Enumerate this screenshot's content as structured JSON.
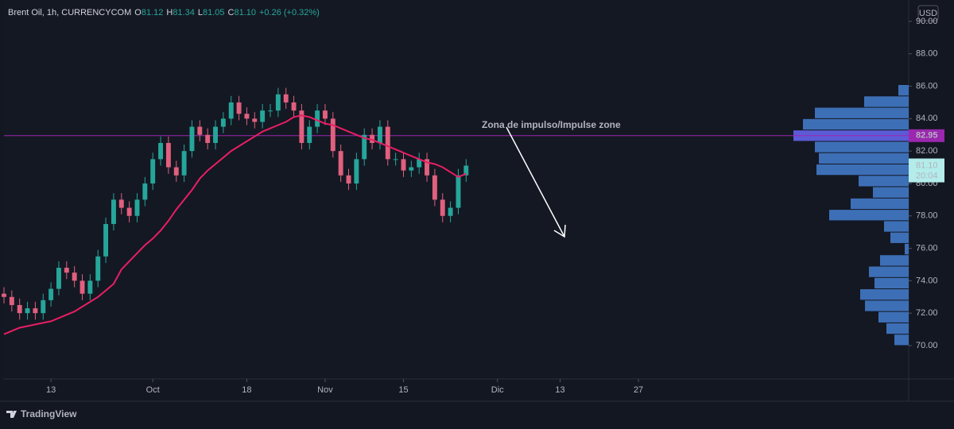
{
  "chart_data": {
    "type": "candlestick",
    "title": "Brent Oil, 1h, CURRENCYCOM",
    "ohlc": [
      {
        "key": "O",
        "text": "81.12"
      },
      {
        "key": "H",
        "text": "81.34"
      },
      {
        "key": "L",
        "text": "81.05"
      },
      {
        "key": "C",
        "text": "81.10"
      }
    ],
    "change": "+0.26 (+0.32%)",
    "currency": "USD",
    "brand": "TradingView",
    "annotation": "Zona de impulso/Impulse zone",
    "up_color": "#26a69a",
    "down_color": "#e0607e",
    "xlim": [
      -6,
      109.5
    ],
    "ylim": [
      67.94,
      91.32
    ],
    "grid": false,
    "xticks": [
      {
        "value": 0,
        "label": "13"
      },
      {
        "value": 13,
        "label": "Oct"
      },
      {
        "value": 25,
        "label": "18"
      },
      {
        "value": 35,
        "label": "Nov"
      },
      {
        "value": 45,
        "label": "15"
      },
      {
        "value": 57,
        "label": "Dic"
      },
      {
        "value": 65,
        "label": "13"
      },
      {
        "value": 75,
        "label": "27"
      }
    ],
    "yticks": [
      {
        "value": 70,
        "label": "70.00"
      },
      {
        "value": 72,
        "label": "72.00"
      },
      {
        "value": 74,
        "label": "74.00"
      },
      {
        "value": 76,
        "label": "76.00"
      },
      {
        "value": 78,
        "label": "78.00"
      },
      {
        "value": 80,
        "label": "80.00"
      },
      {
        "value": 82,
        "label": "82.00"
      },
      {
        "value": 84,
        "label": "84.00"
      },
      {
        "value": 86,
        "label": "86.00"
      },
      {
        "value": 88,
        "label": "88.00"
      },
      {
        "value": 90,
        "label": "90.00"
      }
    ],
    "candles": {
      "x": [
        -6,
        -5,
        -4,
        -3,
        -2,
        -1,
        0,
        1,
        2,
        3,
        4,
        5,
        6,
        7,
        8,
        9,
        10,
        11,
        12,
        13,
        14,
        15,
        16,
        17,
        18,
        19,
        20,
        21,
        22,
        23,
        24,
        25,
        26,
        27,
        28,
        29,
        30,
        31,
        32,
        33,
        34,
        35,
        36,
        37,
        38,
        39,
        40,
        41,
        42,
        43,
        44,
        45,
        46,
        47,
        48,
        49,
        50,
        51,
        52,
        53
      ],
      "open": [
        73.2,
        73.0,
        72.5,
        72.0,
        72.3,
        72.0,
        72.8,
        73.5,
        74.8,
        74.5,
        74.0,
        73.2,
        74.0,
        75.5,
        77.5,
        79.0,
        78.5,
        78.0,
        79.0,
        80.0,
        81.5,
        82.5,
        81.0,
        80.5,
        82.0,
        83.5,
        83.0,
        82.5,
        83.5,
        84.0,
        85.0,
        84.3,
        84.0,
        83.8,
        84.5,
        84.5,
        85.5,
        85.0,
        84.5,
        82.5,
        83.5,
        84.5,
        84.0,
        82.0,
        80.5,
        80.0,
        81.5,
        83.0,
        82.5,
        83.5,
        81.5,
        81.5,
        80.8,
        81.0,
        81.5,
        80.5,
        79.0,
        78.0,
        78.5,
        80.5
      ],
      "high": [
        73.6,
        73.4,
        72.9,
        72.7,
        72.7,
        73.2,
        73.9,
        75.2,
        75.2,
        74.9,
        74.4,
        74.4,
        75.9,
        77.9,
        79.4,
        79.4,
        78.9,
        79.4,
        80.4,
        81.9,
        82.9,
        82.9,
        81.4,
        82.4,
        83.9,
        83.9,
        83.4,
        83.9,
        84.4,
        85.4,
        85.4,
        84.7,
        84.4,
        84.9,
        84.9,
        85.9,
        85.9,
        85.4,
        84.9,
        83.9,
        84.9,
        84.9,
        84.4,
        82.4,
        80.9,
        81.9,
        83.4,
        83.4,
        83.9,
        83.9,
        81.9,
        81.9,
        81.4,
        81.9,
        81.9,
        80.9,
        79.4,
        78.9,
        80.9,
        81.5
      ],
      "low": [
        72.6,
        72.1,
        71.6,
        71.6,
        71.6,
        71.6,
        72.4,
        73.1,
        74.1,
        73.6,
        72.8,
        72.8,
        73.6,
        75.1,
        77.1,
        78.1,
        77.6,
        77.6,
        78.6,
        79.6,
        81.1,
        80.6,
        80.1,
        80.1,
        81.6,
        82.6,
        82.1,
        82.1,
        83.1,
        83.6,
        83.9,
        83.6,
        83.4,
        83.4,
        84.1,
        84.1,
        84.6,
        84.1,
        82.1,
        82.1,
        83.1,
        83.6,
        81.6,
        80.1,
        79.6,
        79.6,
        81.1,
        82.1,
        82.1,
        81.1,
        81.1,
        80.4,
        80.4,
        80.6,
        80.1,
        78.6,
        77.6,
        77.6,
        78.1,
        80.1
      ],
      "close": [
        73.0,
        72.5,
        72.0,
        72.3,
        72.0,
        72.8,
        73.5,
        74.8,
        74.5,
        74.0,
        73.2,
        74.0,
        75.5,
        77.5,
        79.0,
        78.5,
        78.0,
        79.0,
        80.0,
        81.5,
        82.5,
        81.0,
        80.5,
        82.0,
        83.5,
        83.0,
        82.5,
        83.5,
        84.0,
        85.0,
        84.3,
        84.0,
        83.8,
        84.5,
        84.5,
        85.5,
        85.0,
        84.5,
        82.5,
        83.5,
        84.5,
        84.0,
        82.0,
        80.5,
        80.0,
        81.5,
        83.0,
        82.5,
        83.5,
        81.5,
        81.5,
        80.8,
        81.0,
        81.5,
        80.5,
        79.0,
        78.0,
        78.5,
        80.5,
        81.1
      ]
    },
    "ma": {
      "color": "#e91e63",
      "values": [
        70.7,
        70.9,
        71.1,
        71.2,
        71.3,
        71.4,
        71.5,
        71.7,
        71.9,
        72.1,
        72.4,
        72.7,
        73.0,
        73.4,
        73.8,
        74.7,
        75.2,
        75.7,
        76.2,
        76.6,
        77.1,
        77.7,
        78.4,
        79.0,
        79.6,
        80.3,
        80.8,
        81.2,
        81.6,
        82.0,
        82.3,
        82.6,
        82.9,
        83.2,
        83.4,
        83.6,
        83.8,
        84.1,
        84.2,
        84.1,
        83.9,
        83.7,
        83.6,
        83.4,
        83.2,
        83.0,
        82.8,
        82.7,
        82.5,
        82.3,
        82.1,
        81.9,
        81.7,
        81.5,
        81.3,
        81.2,
        81.0,
        80.7,
        80.4,
        80.6
      ]
    },
    "profile": {
      "color": "#3d6fb6",
      "highlight_color": "#5b5bd6",
      "bins": [
        86.1,
        85.4,
        84.7,
        84.0,
        83.3,
        82.6,
        81.9,
        81.2,
        80.5,
        79.8,
        79.1,
        78.4,
        77.7,
        77.0,
        76.3,
        75.6,
        74.9,
        74.2,
        73.5,
        72.8,
        72.1,
        71.4,
        70.7,
        70.0
      ],
      "values": [
        13,
        56,
        118,
        133,
        145,
        118,
        113,
        116,
        63,
        45,
        73,
        100,
        31,
        23,
        5,
        36,
        50,
        43,
        61,
        55,
        38,
        28,
        18
      ]
    },
    "hline": {
      "value": 82.95,
      "color": "#9c27b0"
    },
    "last_price": {
      "value": 81.1,
      "label": "81.10",
      "countdown": "20:04"
    }
  }
}
